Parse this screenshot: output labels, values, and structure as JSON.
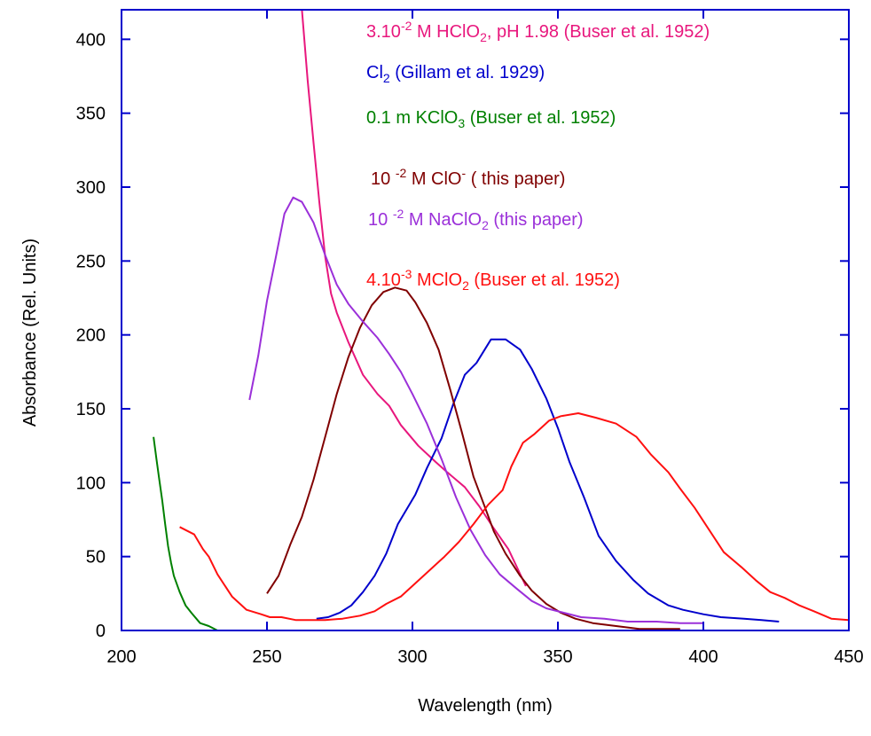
{
  "chart_data": {
    "type": "line",
    "title": "",
    "xlabel": "Wavelength (nm)",
    "ylabel": "Absorbance (Rel. Units)",
    "xlim": [
      200,
      450
    ],
    "ylim": [
      0,
      420
    ],
    "x_ticks": [
      200,
      250,
      300,
      350,
      400,
      450
    ],
    "x_tick_labels": [
      "200",
      "250",
      "300",
      "350",
      "400",
      "450"
    ],
    "y_ticks": [
      0,
      50,
      100,
      150,
      200,
      250,
      300,
      350,
      400
    ],
    "y_tick_labels": [
      "0",
      "50",
      "100",
      "150",
      "200",
      "250",
      "300",
      "350",
      "400"
    ],
    "grid": false,
    "legend_position": "top-right",
    "axis_color": "#0000cc",
    "series": [
      {
        "name": "3.10^-2 M HClO2, pH 1.98 (Buser et al. 1952)",
        "legend_parts": [
          {
            "t": "3.10",
            "s": "normal"
          },
          {
            "t": "-2",
            "s": "sup"
          },
          {
            "t": " M HClO",
            "s": "normal"
          },
          {
            "t": "2",
            "s": "sub"
          },
          {
            "t": ", pH 1.98 (Buser  et al. 1952)",
            "s": "normal"
          }
        ],
        "color": "#e8177d",
        "points": [
          [
            262,
            420
          ],
          [
            264,
            372
          ],
          [
            266,
            330
          ],
          [
            268,
            290
          ],
          [
            270,
            253
          ],
          [
            272,
            228
          ],
          [
            274,
            215
          ],
          [
            278,
            195
          ],
          [
            283,
            173
          ],
          [
            288,
            160
          ],
          [
            292,
            152
          ],
          [
            296,
            139
          ],
          [
            302,
            125
          ],
          [
            308,
            114
          ],
          [
            312,
            107
          ],
          [
            318,
            97
          ],
          [
            323,
            84
          ],
          [
            328,
            69
          ],
          [
            333,
            55
          ],
          [
            339,
            30
          ]
        ]
      },
      {
        "name": "Cl2 (Gillam et al. 1929)",
        "legend_parts": [
          {
            "t": "Cl",
            "s": "normal"
          },
          {
            "t": "2",
            "s": "sub"
          },
          {
            "t": " (Gillam et al. 1929)",
            "s": "normal"
          }
        ],
        "color": "#0000cc",
        "points": [
          [
            267,
            8
          ],
          [
            271,
            9
          ],
          [
            275,
            12
          ],
          [
            279,
            17
          ],
          [
            283,
            26
          ],
          [
            287,
            37
          ],
          [
            291,
            52
          ],
          [
            295,
            72
          ],
          [
            301,
            92
          ],
          [
            305,
            110
          ],
          [
            310,
            130
          ],
          [
            314,
            153
          ],
          [
            318,
            173
          ],
          [
            322,
            181
          ],
          [
            327,
            197
          ],
          [
            332,
            197
          ],
          [
            337,
            190
          ],
          [
            341,
            177
          ],
          [
            346,
            157
          ],
          [
            350,
            137
          ],
          [
            354,
            114
          ],
          [
            359,
            90
          ],
          [
            364,
            64
          ],
          [
            370,
            47
          ],
          [
            376,
            34
          ],
          [
            381,
            25
          ],
          [
            388,
            17
          ],
          [
            393,
            14
          ],
          [
            400,
            11
          ],
          [
            406,
            9
          ],
          [
            414,
            8
          ],
          [
            420,
            7
          ],
          [
            426,
            6
          ]
        ]
      },
      {
        "name": "0.1 m KClO3 (Buser et al. 1952)",
        "legend_parts": [
          {
            "t": "0.1 m KClO",
            "s": "normal"
          },
          {
            "t": "3",
            "s": "sub"
          },
          {
            "t": " (Buser et al. 1952)",
            "s": "normal"
          }
        ],
        "color": "#008000",
        "points": [
          [
            211,
            131
          ],
          [
            212,
            116
          ],
          [
            213,
            102
          ],
          [
            214,
            88
          ],
          [
            215,
            72
          ],
          [
            216,
            57
          ],
          [
            217,
            46
          ],
          [
            218,
            37
          ],
          [
            220,
            26
          ],
          [
            222,
            17
          ],
          [
            224,
            12
          ],
          [
            227,
            5
          ],
          [
            230,
            3
          ],
          [
            233,
            0
          ]
        ]
      },
      {
        "name": "10^-2 M ClO- ( this paper)",
        "legend_parts": [
          {
            "t": "10 ",
            "s": "normal"
          },
          {
            "t": "-2",
            "s": "sup"
          },
          {
            "t": " M ClO",
            "s": "normal"
          },
          {
            "t": "-",
            "s": "sup"
          },
          {
            "t": " ( this paper)",
            "s": "normal"
          }
        ],
        "color": "#800000",
        "points": [
          [
            250,
            25
          ],
          [
            254,
            37
          ],
          [
            258,
            58
          ],
          [
            262,
            77
          ],
          [
            266,
            102
          ],
          [
            270,
            131
          ],
          [
            274,
            160
          ],
          [
            278,
            185
          ],
          [
            282,
            205
          ],
          [
            286,
            220
          ],
          [
            290,
            229
          ],
          [
            294,
            232
          ],
          [
            298,
            230
          ],
          [
            301,
            222
          ],
          [
            305,
            208
          ],
          [
            309,
            190
          ],
          [
            313,
            163
          ],
          [
            317,
            134
          ],
          [
            321,
            104
          ],
          [
            325,
            83
          ],
          [
            328,
            67
          ],
          [
            332,
            52
          ],
          [
            337,
            37
          ],
          [
            341,
            27
          ],
          [
            346,
            18
          ],
          [
            351,
            12
          ],
          [
            356,
            8
          ],
          [
            362,
            5
          ],
          [
            370,
            3
          ],
          [
            378,
            1
          ],
          [
            386,
            1
          ],
          [
            392,
            1
          ]
        ]
      },
      {
        "name": "10^-2 M NaClO2 (this paper)",
        "legend_parts": [
          {
            "t": "10 ",
            "s": "normal"
          },
          {
            "t": "-2",
            "s": "sup"
          },
          {
            "t": " M NaClO",
            "s": "normal"
          },
          {
            "t": "2",
            "s": "sub"
          },
          {
            "t": " (this paper)",
            "s": "normal"
          }
        ],
        "color": "#9b30d9",
        "points": [
          [
            244,
            156
          ],
          [
            247,
            186
          ],
          [
            250,
            223
          ],
          [
            253,
            252
          ],
          [
            256,
            282
          ],
          [
            259,
            293
          ],
          [
            262,
            290
          ],
          [
            266,
            276
          ],
          [
            270,
            254
          ],
          [
            274,
            234
          ],
          [
            278,
            221
          ],
          [
            283,
            209
          ],
          [
            288,
            198
          ],
          [
            292,
            187
          ],
          [
            296,
            175
          ],
          [
            300,
            160
          ],
          [
            305,
            140
          ],
          [
            310,
            116
          ],
          [
            315,
            90
          ],
          [
            320,
            68
          ],
          [
            325,
            51
          ],
          [
            330,
            38
          ],
          [
            336,
            28
          ],
          [
            341,
            20
          ],
          [
            346,
            15
          ],
          [
            352,
            12
          ],
          [
            358,
            9
          ],
          [
            366,
            8
          ],
          [
            374,
            6
          ],
          [
            384,
            6
          ],
          [
            392,
            5
          ],
          [
            400,
            5
          ]
        ]
      },
      {
        "name": "4.10^-3 MClO2 (Buser et al. 1952)",
        "legend_parts": [
          {
            "t": "4.10",
            "s": "normal"
          },
          {
            "t": "-3",
            "s": "sup"
          },
          {
            "t": " MClO",
            "s": "normal"
          },
          {
            "t": "2",
            "s": "sub"
          },
          {
            "t": " (Buser et al. 1952)",
            "s": "normal"
          }
        ],
        "color": "#ff1010",
        "points": [
          [
            220,
            70
          ],
          [
            225,
            65
          ],
          [
            228,
            55
          ],
          [
            230,
            50
          ],
          [
            233,
            38
          ],
          [
            238,
            23
          ],
          [
            243,
            14
          ],
          [
            248,
            11
          ],
          [
            251,
            9
          ],
          [
            255,
            9
          ],
          [
            260,
            7
          ],
          [
            265,
            7
          ],
          [
            270,
            7
          ],
          [
            276,
            8
          ],
          [
            282,
            10
          ],
          [
            287,
            13
          ],
          [
            291,
            18
          ],
          [
            296,
            23
          ],
          [
            301,
            32
          ],
          [
            306,
            41
          ],
          [
            311,
            50
          ],
          [
            316,
            60
          ],
          [
            321,
            72
          ],
          [
            326,
            85
          ],
          [
            331,
            95
          ],
          [
            334,
            111
          ],
          [
            338,
            127
          ],
          [
            342,
            133
          ],
          [
            347,
            142
          ],
          [
            351,
            145
          ],
          [
            357,
            147
          ],
          [
            363,
            144
          ],
          [
            370,
            140
          ],
          [
            377,
            131
          ],
          [
            382,
            119
          ],
          [
            388,
            107
          ],
          [
            392,
            96
          ],
          [
            397,
            83
          ],
          [
            402,
            68
          ],
          [
            407,
            53
          ],
          [
            413,
            43
          ],
          [
            418,
            34
          ],
          [
            423,
            26
          ],
          [
            428,
            22
          ],
          [
            433,
            17
          ],
          [
            438,
            13
          ],
          [
            444,
            8
          ],
          [
            450,
            7
          ]
        ]
      }
    ]
  }
}
